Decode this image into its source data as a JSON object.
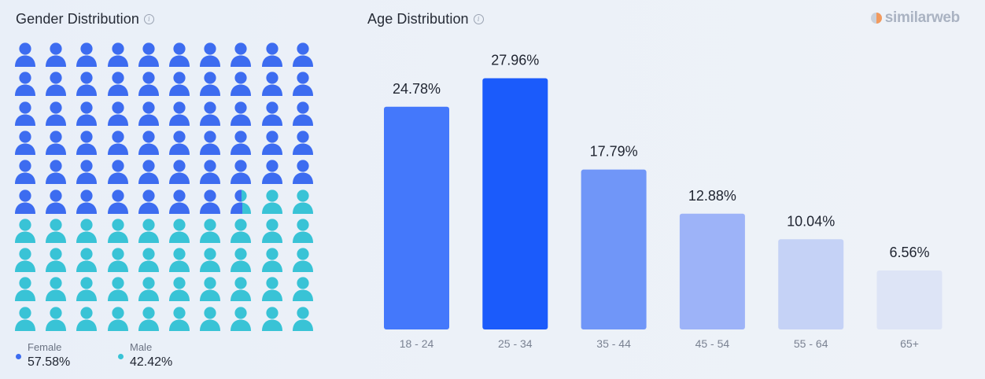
{
  "gender": {
    "title": "Gender Distribution",
    "info_icon": "info-icon",
    "person_icon": "person-icon",
    "female": {
      "label": "Female",
      "value": "57.58%",
      "percent": 57.58,
      "color": "#3d6cf0"
    },
    "male": {
      "label": "Male",
      "value": "42.42%",
      "percent": 42.42,
      "color": "#39c3d6"
    }
  },
  "age": {
    "title": "Age Distribution",
    "info_icon": "info-icon"
  },
  "brand": {
    "name": "similarweb",
    "icon": "similarweb-logo-icon"
  },
  "chart_data": [
    {
      "type": "waffle",
      "title": "Gender Distribution",
      "categories": [
        "Female",
        "Male"
      ],
      "values": [
        57.58,
        42.42
      ],
      "colors": [
        "#3d6cf0",
        "#39c3d6"
      ],
      "legend": "bottom-left"
    },
    {
      "type": "bar",
      "title": "Age Distribution",
      "categories": [
        "18 - 24",
        "25 - 34",
        "35 - 44",
        "45 - 54",
        "55 - 64",
        "65+"
      ],
      "values": [
        24.78,
        27.96,
        17.79,
        12.88,
        10.04,
        6.56
      ],
      "labels": [
        "24.78%",
        "27.96%",
        "17.79%",
        "12.88%",
        "10.04%",
        "6.56%"
      ],
      "colors": [
        "#4478fb",
        "#1b5bfb",
        "#7096f8",
        "#9db3f8",
        "#c5d2f6",
        "#dde4f6"
      ],
      "ylim": [
        0,
        28
      ],
      "grid": false
    }
  ]
}
